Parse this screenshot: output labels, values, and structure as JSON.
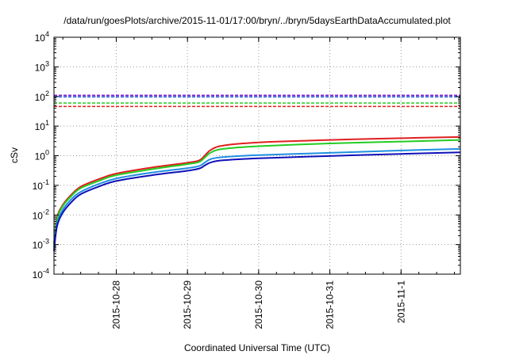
{
  "chart_data": {
    "type": "line",
    "title": "/data/run/goesPlots/archive/2015-11-01/17:00/bryn/../bryn/5daysEarthDataAccumulated.plot",
    "xlabel": "Coordinated Universal Time (UTC)",
    "ylabel": "cSv",
    "yscale": "log",
    "ylim": [
      0.0001,
      10000
    ],
    "y_ticks": [
      {
        "value": 0.0001,
        "base": "10",
        "exp": "-4"
      },
      {
        "value": 0.001,
        "base": "10",
        "exp": "-3"
      },
      {
        "value": 0.01,
        "base": "10",
        "exp": "-2"
      },
      {
        "value": 0.1,
        "base": "10",
        "exp": "-1"
      },
      {
        "value": 1,
        "base": "10",
        "exp": "0"
      },
      {
        "value": 10,
        "base": "10",
        "exp": "1"
      },
      {
        "value": 100,
        "base": "10",
        "exp": "2"
      },
      {
        "value": 1000,
        "base": "10",
        "exp": "3"
      },
      {
        "value": 10000,
        "base": "10",
        "exp": "4"
      }
    ],
    "xlim": [
      "2015-10-27 03:00",
      "2015-11-01 20:00"
    ],
    "x_ticks": [
      "2015-10-28",
      "2015-10-29",
      "2015-10-30",
      "2015-10-31",
      "2015-11-1"
    ],
    "grid": true,
    "legend": "none",
    "thresholds": [
      {
        "value": 110,
        "color": "#7b1fd1"
      },
      {
        "value": 98,
        "color": "#1f3fd6"
      },
      {
        "value": 60,
        "color": "#22cc22"
      },
      {
        "value": 46,
        "color": "#e01f1f"
      }
    ],
    "series": [
      {
        "color": "#e01f1f",
        "x": [
          "2015-10-27 03:00",
          "2015-10-27 04:00",
          "2015-10-27 06:00",
          "2015-10-27 09:00",
          "2015-10-27 12:00",
          "2015-10-27 18:00",
          "2015-10-28 00:00",
          "2015-10-28 12:00",
          "2015-10-29 00:00",
          "2015-10-29 04:00",
          "2015-10-29 06:00",
          "2015-10-29 08:00",
          "2015-10-29 12:00",
          "2015-10-30 00:00",
          "2015-10-31 00:00",
          "2015-11-01 00:00",
          "2015-11-01 20:00"
        ],
        "y": [
          0.001,
          0.008,
          0.022,
          0.05,
          0.09,
          0.16,
          0.25,
          0.4,
          0.58,
          0.7,
          1.05,
          1.6,
          2.2,
          2.8,
          3.4,
          3.9,
          4.3
        ]
      },
      {
        "color": "#22cc22",
        "x": [
          "2015-10-27 03:00",
          "2015-10-27 04:00",
          "2015-10-27 06:00",
          "2015-10-27 09:00",
          "2015-10-27 12:00",
          "2015-10-27 18:00",
          "2015-10-28 00:00",
          "2015-10-28 12:00",
          "2015-10-29 00:00",
          "2015-10-29 04:00",
          "2015-10-29 06:00",
          "2015-10-29 08:00",
          "2015-10-29 12:00",
          "2015-10-30 00:00",
          "2015-10-31 00:00",
          "2015-11-01 00:00",
          "2015-11-01 20:00"
        ],
        "y": [
          0.001,
          0.007,
          0.02,
          0.045,
          0.08,
          0.14,
          0.22,
          0.35,
          0.52,
          0.62,
          0.9,
          1.3,
          1.7,
          2.1,
          2.6,
          3.0,
          3.4
        ]
      },
      {
        "color": "#1f8fe0",
        "x": [
          "2015-10-27 03:00",
          "2015-10-27 04:00",
          "2015-10-27 06:00",
          "2015-10-27 09:00",
          "2015-10-27 12:00",
          "2015-10-27 18:00",
          "2015-10-28 00:00",
          "2015-10-28 12:00",
          "2015-10-29 00:00",
          "2015-10-29 04:00",
          "2015-10-29 06:00",
          "2015-10-29 08:00",
          "2015-10-29 12:00",
          "2015-10-30 00:00",
          "2015-10-31 00:00",
          "2015-11-01 00:00",
          "2015-11-01 20:00"
        ],
        "y": [
          0.0008,
          0.005,
          0.015,
          0.035,
          0.06,
          0.11,
          0.17,
          0.27,
          0.38,
          0.45,
          0.6,
          0.78,
          0.9,
          1.05,
          1.25,
          1.5,
          1.7
        ]
      },
      {
        "color": "#1010b8",
        "x": [
          "2015-10-27 03:00",
          "2015-10-27 04:00",
          "2015-10-27 06:00",
          "2015-10-27 09:00",
          "2015-10-27 12:00",
          "2015-10-27 18:00",
          "2015-10-28 00:00",
          "2015-10-28 12:00",
          "2015-10-29 00:00",
          "2015-10-29 04:00",
          "2015-10-29 06:00",
          "2015-10-29 08:00",
          "2015-10-29 12:00",
          "2015-10-30 00:00",
          "2015-10-31 00:00",
          "2015-11-01 00:00",
          "2015-11-01 20:00"
        ],
        "y": [
          0.0006,
          0.004,
          0.012,
          0.028,
          0.05,
          0.09,
          0.14,
          0.22,
          0.31,
          0.37,
          0.48,
          0.6,
          0.7,
          0.82,
          0.98,
          1.15,
          1.3
        ]
      }
    ]
  }
}
